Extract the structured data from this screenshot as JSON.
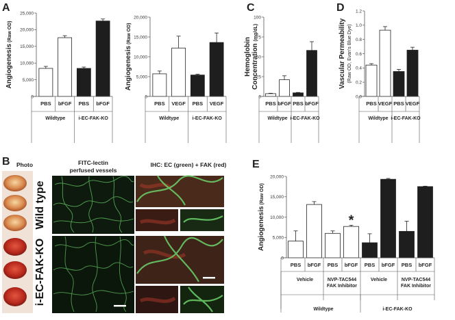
{
  "panels": {
    "A": "A",
    "B": "B",
    "C": "C",
    "D": "D",
    "E": "E"
  },
  "chart_data": [
    {
      "id": "A1",
      "type": "bar",
      "ylabel": "Angiogenesis",
      "ylabel_unit": "(Raw OD)",
      "ylim": [
        0,
        25000
      ],
      "yticks": [
        "0",
        "5,000",
        "10,000",
        "15,000",
        "20,000",
        "25,000"
      ],
      "categories": [
        "PBS",
        "bFGF",
        "PBS",
        "bFGF"
      ],
      "fill": [
        "white",
        "white",
        "black",
        "black"
      ],
      "values": [
        8400,
        17600,
        8400,
        22600
      ],
      "errors": [
        600,
        600,
        400,
        600
      ],
      "groups": [
        "Wildtype",
        "i-EC-FAK-KO"
      ]
    },
    {
      "id": "A2",
      "type": "bar",
      "ylabel": "Angiogenesis",
      "ylabel_unit": "(Raw OD)",
      "ylim": [
        0,
        20000
      ],
      "yticks": [
        "0",
        "5,000",
        "10,000",
        "15,000",
        "20,000"
      ],
      "categories": [
        "PBS",
        "VEGF",
        "PBS",
        "VEGF"
      ],
      "fill": [
        "white",
        "white",
        "black",
        "black"
      ],
      "values": [
        5700,
        12200,
        5400,
        13600
      ],
      "errors": [
        700,
        3000,
        200,
        2400
      ],
      "groups": [
        "Wildtype",
        "i-EC-FAK-KO"
      ]
    },
    {
      "id": "C",
      "type": "bar",
      "ylabel": "Hemoglobin",
      "ylabel2": "Concentration",
      "ylabel_unit": "(mg/dL)",
      "ylim": [
        0,
        100
      ],
      "yticks": [
        "0",
        "25",
        "50",
        "75",
        "100"
      ],
      "categories": [
        "PBS",
        "bFGF",
        "PBS",
        "bFGF"
      ],
      "fill": [
        "white",
        "white",
        "black",
        "black"
      ],
      "values": [
        3.5,
        21,
        4.5,
        58
      ],
      "errors": [
        0.5,
        5,
        0.5,
        11
      ],
      "groups": [
        "Wildtype",
        "i-EC-FAK-KO"
      ]
    },
    {
      "id": "D",
      "type": "bar",
      "ylabel": "Vascular Permeability",
      "ylabel_unit": "(Raw OD, Evan's Blue Dye)",
      "ylim": [
        0,
        1.2
      ],
      "yticks": [
        "0.0",
        "0.2",
        "0.4",
        "0.6",
        "0.8",
        "1.0",
        "1.2"
      ],
      "categories": [
        "PBS",
        "VEGF",
        "PBS",
        "VEGF"
      ],
      "fill": [
        "white",
        "white",
        "black",
        "black"
      ],
      "values": [
        0.44,
        0.93,
        0.35,
        0.65
      ],
      "errors": [
        0.02,
        0.05,
        0.03,
        0.04
      ],
      "groups": [
        "Wildtype",
        "i-EC-FAK-KO"
      ]
    },
    {
      "id": "E",
      "type": "bar",
      "ylabel": "Angiogenesis",
      "ylabel_unit": "(Raw OD)",
      "ylim": [
        0,
        20000
      ],
      "yticks": [
        "0",
        "5,000",
        "10,000",
        "15,000",
        "20,000"
      ],
      "categories": [
        "PBS",
        "bFGF",
        "PBS",
        "bFGF",
        "PBS",
        "bFGF",
        "PBS",
        "bFGF"
      ],
      "fill": [
        "white",
        "white",
        "white",
        "white",
        "black",
        "black",
        "black",
        "black"
      ],
      "values": [
        4100,
        13100,
        6000,
        7700,
        3700,
        19300,
        6500,
        17500
      ],
      "errors": [
        2500,
        700,
        600,
        300,
        2200,
        200,
        2500,
        100
      ],
      "treatment_groups": [
        "Vehicle",
        "NVP-TAC544 FAK Inhibitor",
        "Vehicle",
        "NVP-TAC544 FAK Inhibitor"
      ],
      "genotype_groups": [
        "Wildtype",
        "i-EC-FAK-KO"
      ],
      "annotation": "*"
    }
  ],
  "panel_b": {
    "col_photo": "Photo",
    "col_fitc_1": "FITC-lectin",
    "col_fitc_2": "perfused vessels",
    "col_ihc": "IHC: EC (green) + FAK (red)",
    "row_wt": "Wild type",
    "row_ko": "i-EC-FAK-KO"
  },
  "colors": {
    "bar_white": "#ffffff",
    "bar_black": "#1e1e1e",
    "vessel_green": "#5fcf5a",
    "fak_red": "#b23a2a",
    "photo_bg": "#f2e6dc"
  }
}
